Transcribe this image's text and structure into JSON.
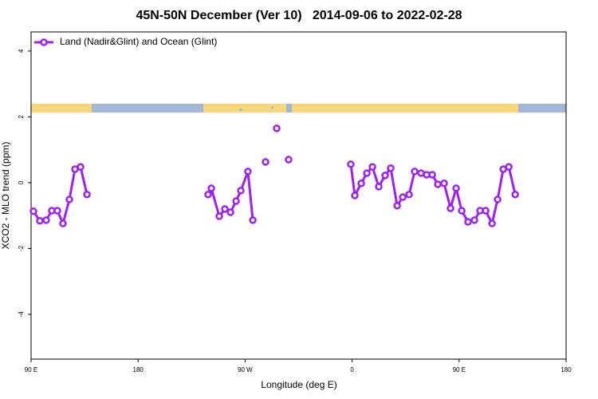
{
  "chart_data": {
    "type": "line",
    "title": "45N-50N December (Ver 10)   2014-09-06 to 2022-02-28",
    "x_label": "Longitude (deg E)",
    "y_label": "XCO2 - MLO trend (ppm)",
    "xlim": [
      90,
      540
    ],
    "xticks": [
      {
        "value": 90,
        "label": "90 E"
      },
      180,
      {
        "value": 270,
        "label": "90 W"
      },
      {
        "value": 360,
        "label": "0"
      },
      {
        "value": 450,
        "label": "90 E"
      },
      {
        "value": 540,
        "label": "180"
      }
    ],
    "ylim": [
      -5.36,
      4.58
    ],
    "yticks": [
      -4,
      -2,
      0,
      2,
      4
    ],
    "legend": "top-left",
    "series": [
      {
        "name": "Land (Nadir&Glint) and Ocean (Glint)",
        "color": "#a020f0",
        "x": [
          92,
          97.4,
          102.7,
          107.4,
          112.1,
          116.8,
          122.2,
          126.9,
          131.6,
          137,
          null,
          238.9,
          241.6,
          248.3,
          253,
          257.7,
          262.4,
          266.4,
          272.4,
          276.5,
          null,
          287.2,
          null,
          296.6,
          null,
          306.6,
          null,
          358.9,
          362.3,
          367.7,
          372.4,
          377.1,
          382.4,
          387.8,
          392.5,
          397.9,
          402.6,
          407.9,
          412.6,
          418,
          422.7,
          427.4,
          432.1,
          437.4,
          442.8,
          447.5,
          452.2,
          457.5,
          462.9,
          467.6,
          472.3,
          477.7,
          482.4,
          487.1,
          491.8,
          497.2
        ],
        "values": [
          -0.87,
          -1.16,
          -1.14,
          -0.85,
          -0.85,
          -1.24,
          -0.51,
          0.41,
          0.48,
          -0.36,
          null,
          -0.36,
          -0.17,
          -1.02,
          -0.8,
          -0.9,
          -0.56,
          -0.24,
          0.34,
          -1.14,
          null,
          0.63,
          null,
          1.65,
          null,
          0.7,
          null,
          0.56,
          -0.39,
          -0.02,
          0.29,
          0.48,
          -0.12,
          0.22,
          0.44,
          -0.7,
          -0.44,
          -0.36,
          0.34,
          0.29,
          0.24,
          0.24,
          -0.05,
          -0.02,
          -0.78,
          -0.17,
          -0.85,
          -1.19,
          -1.14,
          -0.85,
          -0.85,
          -1.24,
          -0.51,
          0.41,
          0.48,
          -0.36
        ]
      }
    ]
  }
}
